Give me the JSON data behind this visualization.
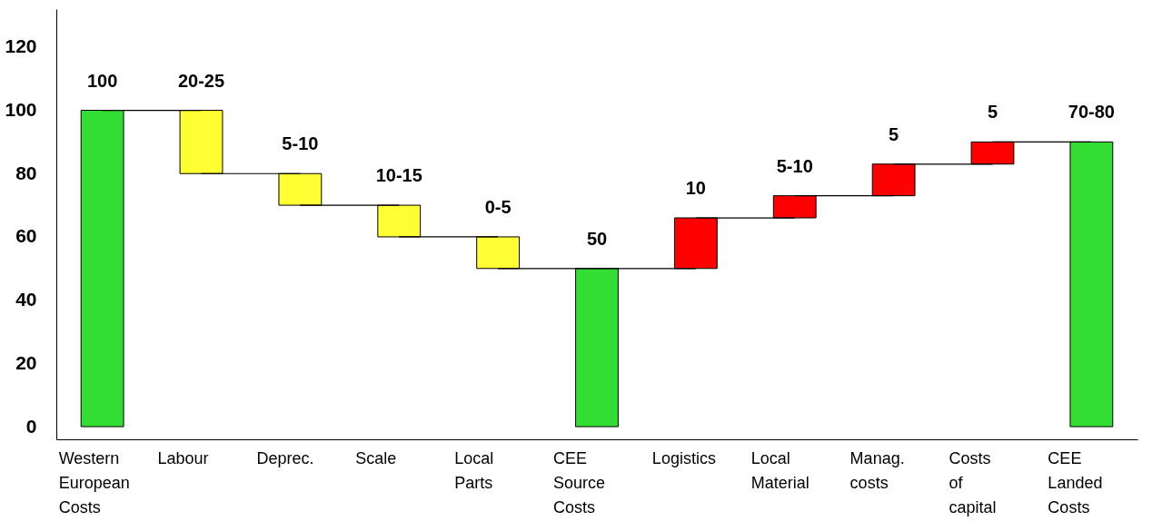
{
  "chart_data": {
    "type": "bar",
    "categories": [
      "Western European Costs",
      "Labour",
      "Deprec.",
      "Scale",
      "Local Parts",
      "CEE Source Costs",
      "Logistics",
      "Local Material",
      "Manag. costs",
      "Costs of capital",
      "CEE Landed Costs"
    ],
    "values": [
      100,
      20,
      10,
      10,
      10,
      50,
      16,
      7,
      10,
      7,
      90
    ],
    "base": [
      0,
      80,
      70,
      60,
      50,
      0,
      50,
      66,
      73,
      83,
      0
    ],
    "colors": [
      "#33dd33",
      "#ffff33",
      "#ffff33",
      "#ffff33",
      "#ffff33",
      "#33dd33",
      "#ff0000",
      "#ff0000",
      "#ff0000",
      "#ff0000",
      "#33dd33"
    ],
    "annotations": [
      {
        "text": "100",
        "x": "Western European Costs",
        "y": 100
      },
      {
        "text": "20-25",
        "x": "Labour",
        "y": 100
      },
      {
        "text": "5-10",
        "x": "Deprec.",
        "y": 80
      },
      {
        "text": "10-15",
        "x": "Scale",
        "y": 70
      },
      {
        "text": "0-5",
        "x": "Local Parts",
        "y": 60
      },
      {
        "text": "50",
        "x": "CEE Source Costs",
        "y": 50
      },
      {
        "text": "10",
        "x": "Logistics",
        "y": 66
      },
      {
        "text": "5-10",
        "x": "Local Material",
        "y": 73
      },
      {
        "text": "5",
        "x": "Manag. costs",
        "y": 83
      },
      {
        "text": "5",
        "x": "Costs of capital",
        "y": 90
      },
      {
        "text": "70-80",
        "x": "CEE Landed Costs",
        "y": 90
      }
    ],
    "ylim": [
      -4,
      132
    ],
    "yticks": [
      0,
      20,
      40,
      60,
      80,
      100,
      120
    ],
    "grid": false,
    "legend": false
  }
}
